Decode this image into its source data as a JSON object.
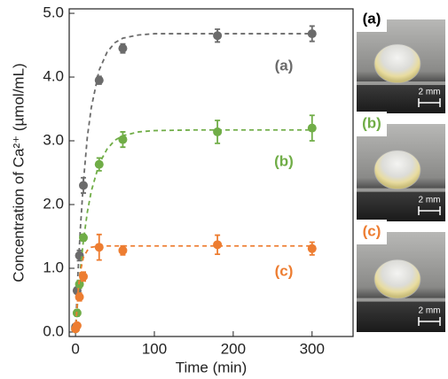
{
  "chart_data": {
    "type": "scatter",
    "xlabel": "Time (min)",
    "ylabel": "Concentration of Ca²⁺ (µmol/mL)",
    "xlim": [
      -8,
      352
    ],
    "ylim": [
      -0.07,
      5.07
    ],
    "xticks": [
      0,
      100,
      200,
      300
    ],
    "yticks": [
      {
        "value": 0,
        "label": "0.0"
      },
      {
        "value": 1,
        "label": "1.0"
      },
      {
        "value": 2,
        "label": "2.0"
      },
      {
        "value": 3,
        "label": "3.0"
      },
      {
        "value": 4,
        "label": "4.0"
      },
      {
        "value": 5,
        "label": "5.0"
      }
    ],
    "x": [
      0,
      2,
      5,
      10,
      30,
      60,
      180,
      300
    ],
    "fit_x": [
      0,
      3,
      6,
      10,
      15,
      20,
      30,
      40,
      50,
      60,
      80,
      100,
      150,
      200,
      300
    ],
    "series": [
      {
        "name": "(a)",
        "color": "#6b6b6b",
        "values": [
          0.08,
          0.65,
          1.2,
          2.3,
          3.95,
          4.45,
          4.65,
          4.68
        ],
        "errors": [
          0.03,
          0.05,
          0.08,
          0.12,
          0.06,
          0.07,
          0.1,
          0.12
        ],
        "fit_values": [
          0,
          0.89,
          1.59,
          2.35,
          3.06,
          3.52,
          4.11,
          4.39,
          4.54,
          4.61,
          4.66,
          4.68,
          4.68,
          4.68,
          4.68
        ]
      },
      {
        "name": "(b)",
        "color": "#70ad47",
        "values": [
          0.05,
          0.3,
          0.75,
          1.48,
          2.63,
          3.02,
          3.14,
          3.2
        ],
        "errors": [
          0.03,
          0.05,
          0.06,
          0.05,
          0.1,
          0.12,
          0.18,
          0.2
        ],
        "fit_values": [
          0,
          0.52,
          0.96,
          1.43,
          1.88,
          2.21,
          2.64,
          2.87,
          3.01,
          3.08,
          3.14,
          3.16,
          3.17,
          3.17,
          3.17
        ]
      },
      {
        "name": "(c)",
        "color": "#ed7d31",
        "values": [
          0.05,
          0.1,
          0.55,
          0.87,
          1.33,
          1.28,
          1.37,
          1.31
        ],
        "errors": [
          0.03,
          0.04,
          0.06,
          0.07,
          0.2,
          0.07,
          0.15,
          0.1
        ],
        "fit_values": [
          0,
          0.61,
          0.94,
          1.17,
          1.28,
          1.33,
          1.35,
          1.35,
          1.35,
          1.35,
          1.35,
          1.35,
          1.35,
          1.35,
          1.35
        ]
      }
    ]
  },
  "photos": [
    {
      "label": "(a)",
      "label_color": "#000000",
      "scale": "2 mm"
    },
    {
      "label": "(b)",
      "label_color": "#70ad47",
      "scale": "2 mm"
    },
    {
      "label": "(c)",
      "label_color": "#ed7d31",
      "scale": "2 mm"
    }
  ]
}
